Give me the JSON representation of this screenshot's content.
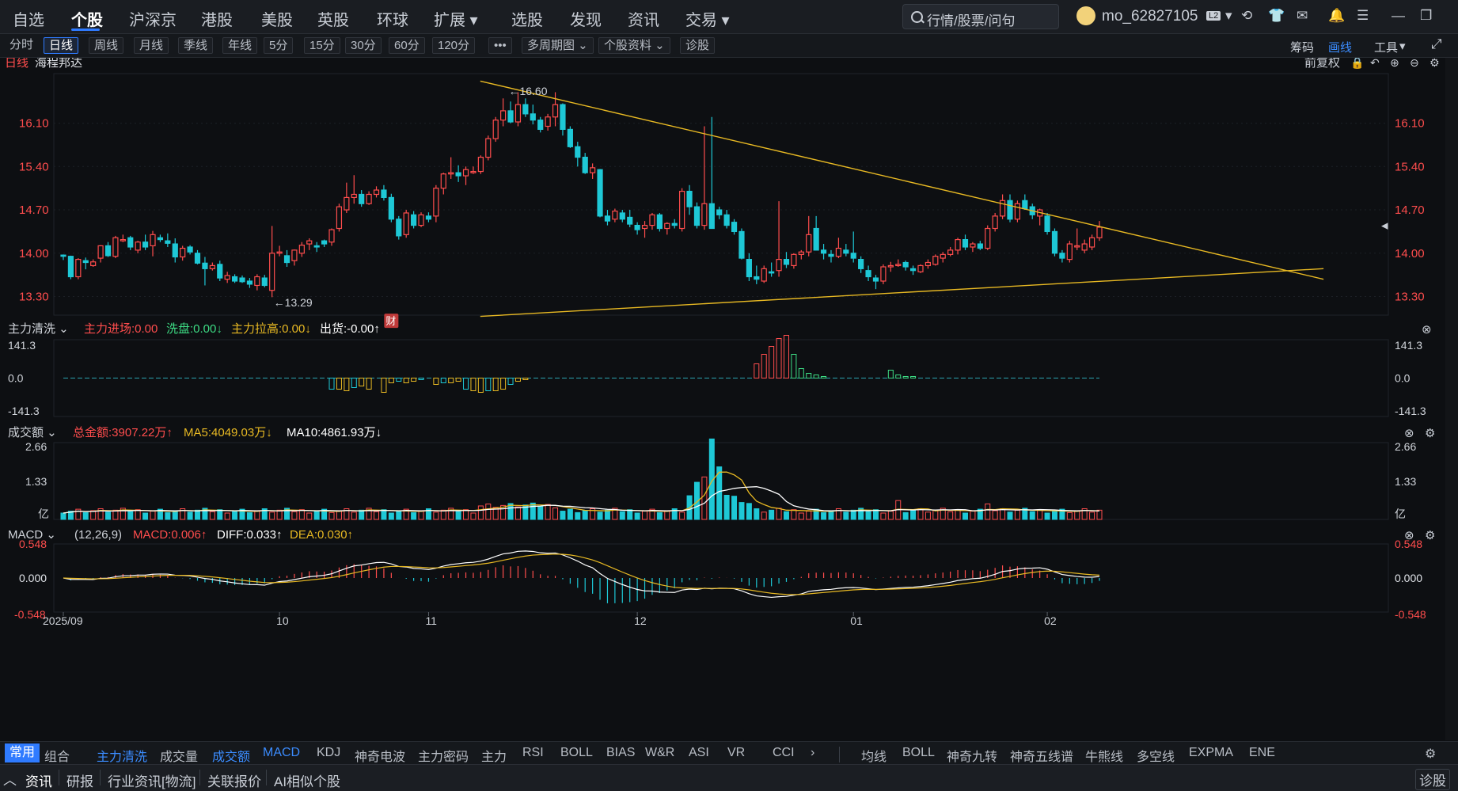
{
  "nav": {
    "items": [
      "自选",
      "个股",
      "沪深京",
      "港股",
      "美股",
      "英股",
      "环球",
      "扩展",
      "选股",
      "发现",
      "资讯",
      "交易"
    ],
    "active": "个股",
    "search_placeholder": "行情/股票/问句",
    "username": "mo_62827105"
  },
  "toolbar": {
    "periods": [
      "分时",
      "日线",
      "周线",
      "月线",
      "季线",
      "年线",
      "5分",
      "15分",
      "30分",
      "60分",
      "120分",
      "•••",
      "多周期图",
      "个股资料",
      "诊股"
    ],
    "active": "日线",
    "right": [
      "筹码",
      "画线",
      "工具"
    ]
  },
  "stock": {
    "period_label": "日线",
    "name": "海程邦达",
    "adjust": "前复权"
  },
  "colors": {
    "up": "#ff4d4d",
    "down": "#1ec8d6",
    "trend": "#e8b923",
    "ma5": "#e8b923",
    "ma10": "#ffffff",
    "blue": "#2f7bff"
  },
  "price_panel": {
    "y_ticks": [
      "16.10",
      "15.40",
      "14.70",
      "14.00",
      "13.30"
    ],
    "high_label": "←16.60",
    "low_label": "←13.29",
    "event_badge": "财"
  },
  "capital_panel": {
    "name": "主力清洗",
    "items": [
      {
        "label": "主力进场:0.00",
        "color": "#ff4d4d"
      },
      {
        "label": "洗盘:0.00↓",
        "color": "#3ddc84"
      },
      {
        "label": "主力拉高:0.00↓",
        "color": "#e8b923"
      },
      {
        "label": "出货:-0.00↑",
        "color": "#ffffff"
      }
    ],
    "y_ticks": [
      "141.3",
      "0.0",
      "-141.3"
    ]
  },
  "volume_panel": {
    "name": "成交额",
    "items": [
      {
        "label": "总金额:3907.22万↑",
        "color": "#ff4d4d"
      },
      {
        "label": "MA5:4049.03万↓",
        "color": "#e8b923"
      },
      {
        "label": "MA10:4861.93万↓",
        "color": "#ffffff"
      }
    ],
    "y_ticks": [
      "2.66",
      "1.33",
      "亿"
    ]
  },
  "macd_panel": {
    "name": "MACD",
    "params": "(12,26,9)",
    "items": [
      {
        "label": "MACD:0.006↑",
        "color": "#ff4d4d"
      },
      {
        "label": "DIFF:0.033↑",
        "color": "#ffffff"
      },
      {
        "label": "DEA:0.030↑",
        "color": "#e8b923"
      }
    ],
    "y_ticks": [
      "0.548",
      "0.000",
      "-0.548"
    ]
  },
  "x_axis": [
    "2025/09",
    "10",
    "11",
    "12",
    "01",
    "02"
  ],
  "indicator_tabs": [
    "常用",
    "组合",
    "主力清洗",
    "成交量",
    "成交额",
    "MACD",
    "KDJ",
    "神奇电波",
    "主力密码",
    "主力",
    "RSI",
    "BOLL",
    "BIAS",
    "W&R",
    "ASI",
    "VR",
    "CCI"
  ],
  "overlay_tabs": [
    "均线",
    "BOLL",
    "神奇九转",
    "神奇五线谱",
    "牛熊线",
    "多空线",
    "EXPMA",
    "ENE"
  ],
  "news_tabs": [
    "资讯",
    "研报",
    "行业资讯[物流]",
    "关联报价",
    "AI相似个股"
  ],
  "news_right": "诊股",
  "chart_data": {
    "type": "candlestick",
    "title": "海程邦达",
    "x_range": [
      "2025/09",
      "02"
    ],
    "ylim": [
      13.0,
      16.9
    ],
    "candles": [
      [
        13.97,
        13.98,
        13.89,
        13.95
      ],
      [
        13.95,
        13.96,
        13.58,
        13.62
      ],
      [
        13.62,
        13.92,
        13.58,
        13.9
      ],
      [
        13.88,
        13.93,
        13.74,
        13.85
      ],
      [
        13.8,
        13.9,
        13.78,
        13.86
      ],
      [
        13.92,
        14.13,
        13.85,
        14.12
      ],
      [
        14.12,
        14.18,
        13.94,
        13.96
      ],
      [
        13.95,
        14.28,
        13.92,
        14.25
      ],
      [
        14.2,
        14.3,
        14.18,
        14.22
      ],
      [
        14.25,
        14.28,
        14.05,
        14.1
      ],
      [
        14.05,
        14.2,
        14.0,
        14.18
      ],
      [
        14.18,
        14.3,
        14.05,
        14.1
      ],
      [
        14.12,
        14.36,
        13.95,
        14.3
      ],
      [
        14.25,
        14.3,
        14.18,
        14.22
      ],
      [
        14.2,
        14.32,
        14.1,
        14.16
      ],
      [
        14.15,
        14.24,
        13.85,
        13.94
      ],
      [
        13.94,
        14.12,
        13.88,
        14.08
      ],
      [
        14.1,
        14.13,
        13.98,
        14.02
      ],
      [
        14.0,
        14.05,
        13.82,
        13.84
      ],
      [
        13.84,
        13.94,
        13.48,
        13.75
      ],
      [
        13.75,
        13.85,
        13.72,
        13.8
      ],
      [
        13.82,
        13.88,
        13.55,
        13.6
      ],
      [
        13.58,
        13.7,
        13.52,
        13.64
      ],
      [
        13.62,
        13.66,
        13.52,
        13.55
      ],
      [
        13.6,
        13.64,
        13.52,
        13.54
      ],
      [
        13.55,
        13.6,
        13.44,
        13.5
      ],
      [
        13.48,
        13.66,
        13.4,
        13.62
      ],
      [
        13.6,
        13.65,
        13.45,
        13.48
      ],
      [
        13.4,
        14.44,
        13.29,
        14.0
      ],
      [
        14.0,
        14.12,
        13.95,
        14.02
      ],
      [
        13.96,
        14.05,
        13.78,
        13.85
      ],
      [
        13.88,
        14.06,
        13.8,
        14.05
      ],
      [
        14.0,
        14.18,
        13.94,
        14.13
      ],
      [
        14.15,
        14.24,
        14.05,
        14.2
      ],
      [
        14.12,
        14.18,
        14.02,
        14.1
      ],
      [
        14.2,
        14.22,
        14.1,
        14.15
      ],
      [
        14.18,
        14.4,
        14.12,
        14.38
      ],
      [
        14.4,
        14.8,
        14.35,
        14.75
      ],
      [
        14.7,
        15.14,
        14.65,
        14.9
      ],
      [
        14.9,
        15.26,
        14.8,
        14.95
      ],
      [
        14.95,
        15.02,
        14.75,
        14.8
      ],
      [
        14.8,
        15.0,
        14.78,
        14.95
      ],
      [
        14.95,
        15.08,
        14.9,
        15.02
      ],
      [
        15.02,
        15.1,
        14.85,
        14.9
      ],
      [
        14.9,
        14.96,
        14.5,
        14.55
      ],
      [
        14.55,
        14.6,
        14.22,
        14.28
      ],
      [
        14.3,
        14.7,
        14.25,
        14.65
      ],
      [
        14.62,
        14.68,
        14.4,
        14.45
      ],
      [
        14.45,
        14.66,
        14.42,
        14.62
      ],
      [
        14.6,
        14.66,
        14.5,
        14.55
      ],
      [
        14.6,
        15.1,
        14.5,
        15.05
      ],
      [
        15.05,
        15.3,
        14.95,
        15.28
      ],
      [
        15.28,
        15.55,
        15.2,
        15.3
      ],
      [
        15.3,
        15.42,
        15.15,
        15.25
      ],
      [
        15.25,
        15.4,
        15.1,
        15.35
      ],
      [
        15.3,
        15.4,
        15.28,
        15.32
      ],
      [
        15.32,
        15.58,
        15.28,
        15.55
      ],
      [
        15.55,
        15.9,
        15.5,
        15.85
      ],
      [
        15.85,
        16.2,
        15.8,
        16.15
      ],
      [
        16.15,
        16.5,
        16.05,
        16.3
      ],
      [
        16.3,
        16.45,
        16.1,
        16.12
      ],
      [
        16.12,
        16.6,
        16.05,
        16.4
      ],
      [
        16.4,
        16.5,
        16.2,
        16.25
      ],
      [
        16.25,
        16.4,
        16.08,
        16.15
      ],
      [
        16.15,
        16.2,
        15.95,
        16.0
      ],
      [
        16.05,
        16.25,
        15.98,
        16.2
      ],
      [
        16.2,
        16.6,
        16.05,
        16.4
      ],
      [
        16.4,
        16.42,
        15.9,
        16.0
      ],
      [
        16.0,
        16.05,
        15.7,
        15.72
      ],
      [
        15.72,
        15.8,
        15.4,
        15.55
      ],
      [
        15.55,
        15.62,
        15.28,
        15.3
      ],
      [
        15.3,
        15.45,
        15.2,
        15.38
      ],
      [
        15.35,
        15.36,
        14.58,
        14.6
      ],
      [
        14.6,
        14.7,
        14.45,
        14.52
      ],
      [
        14.55,
        14.72,
        14.5,
        14.68
      ],
      [
        14.65,
        14.7,
        14.5,
        14.55
      ],
      [
        14.58,
        14.7,
        14.42,
        14.47
      ],
      [
        14.45,
        14.5,
        14.3,
        14.38
      ],
      [
        14.4,
        14.52,
        14.25,
        14.45
      ],
      [
        14.45,
        14.65,
        14.38,
        14.62
      ],
      [
        14.62,
        14.65,
        14.35,
        14.4
      ],
      [
        14.4,
        14.5,
        14.3,
        14.48
      ],
      [
        14.48,
        14.55,
        14.4,
        14.45
      ],
      [
        14.4,
        15.05,
        14.35,
        15.0
      ],
      [
        15.0,
        15.1,
        14.62,
        14.75
      ],
      [
        14.75,
        14.82,
        14.4,
        14.45
      ],
      [
        14.45,
        16.05,
        14.38,
        14.8
      ],
      [
        14.8,
        16.2,
        14.4,
        14.4
      ],
      [
        14.7,
        14.75,
        14.55,
        14.62
      ],
      [
        14.62,
        14.7,
        14.4,
        14.45
      ],
      [
        14.5,
        14.55,
        14.3,
        14.35
      ],
      [
        14.35,
        14.4,
        13.9,
        13.92
      ],
      [
        13.9,
        14.0,
        13.55,
        13.62
      ],
      [
        13.62,
        13.8,
        13.5,
        13.58
      ],
      [
        13.55,
        13.8,
        13.52,
        13.75
      ],
      [
        13.7,
        13.85,
        13.62,
        13.68
      ],
      [
        13.72,
        14.84,
        13.62,
        13.9
      ],
      [
        13.9,
        14.02,
        13.76,
        13.82
      ],
      [
        13.8,
        14.0,
        13.75,
        13.98
      ],
      [
        13.98,
        14.05,
        13.9,
        14.02
      ],
      [
        14.02,
        14.6,
        13.95,
        14.3
      ],
      [
        14.4,
        14.6,
        14.08,
        14.05
      ],
      [
        14.05,
        14.15,
        13.9,
        14.0
      ],
      [
        13.98,
        14.05,
        13.85,
        13.95
      ],
      [
        13.95,
        14.25,
        13.92,
        14.08
      ],
      [
        14.05,
        14.15,
        13.95,
        14.0
      ],
      [
        14.0,
        14.35,
        13.85,
        13.92
      ],
      [
        13.9,
        13.95,
        13.68,
        13.75
      ],
      [
        13.72,
        13.8,
        13.55,
        13.62
      ],
      [
        13.6,
        13.65,
        13.42,
        13.55
      ],
      [
        13.55,
        13.82,
        13.5,
        13.78
      ],
      [
        13.78,
        13.86,
        13.7,
        13.8
      ],
      [
        13.8,
        13.9,
        13.78,
        13.82
      ],
      [
        13.85,
        13.88,
        13.72,
        13.78
      ],
      [
        13.75,
        13.8,
        13.65,
        13.72
      ],
      [
        13.7,
        13.82,
        13.68,
        13.8
      ],
      [
        13.8,
        13.9,
        13.75,
        13.85
      ],
      [
        13.82,
        13.98,
        13.8,
        13.95
      ],
      [
        13.92,
        14.02,
        13.85,
        13.98
      ],
      [
        13.98,
        14.1,
        13.95,
        14.05
      ],
      [
        14.05,
        14.25,
        13.98,
        14.22
      ],
      [
        14.22,
        14.3,
        14.05,
        14.1
      ],
      [
        14.1,
        14.18,
        14.02,
        14.15
      ],
      [
        14.15,
        14.2,
        14.05,
        14.08
      ],
      [
        14.08,
        14.45,
        14.05,
        14.4
      ],
      [
        14.4,
        14.65,
        14.35,
        14.6
      ],
      [
        14.6,
        14.95,
        14.55,
        14.85
      ],
      [
        14.85,
        14.95,
        14.5,
        14.55
      ],
      [
        14.55,
        14.85,
        14.5,
        14.8
      ],
      [
        14.85,
        14.95,
        14.7,
        14.72
      ],
      [
        14.75,
        14.8,
        14.55,
        14.62
      ],
      [
        14.6,
        14.72,
        14.45,
        14.7
      ],
      [
        14.6,
        14.65,
        14.3,
        14.35
      ],
      [
        14.35,
        14.4,
        13.95,
        14.0
      ],
      [
        14.0,
        14.05,
        13.85,
        13.92
      ],
      [
        13.9,
        14.2,
        13.85,
        14.15
      ],
      [
        14.12,
        14.4,
        14.05,
        14.12
      ],
      [
        14.05,
        14.22,
        14.0,
        14.15
      ],
      [
        14.1,
        14.3,
        14.05,
        14.25
      ],
      [
        14.25,
        14.52,
        14.2,
        14.42
      ]
    ],
    "trendlines": [
      {
        "from": {
          "i": 57,
          "y": 16.78
        },
        "to": {
          "i": 168,
          "y": 13.58
        }
      },
      {
        "from": {
          "i": 57,
          "y": 12.98
        },
        "to": {
          "i": 168,
          "y": 13.75
        }
      }
    ]
  }
}
